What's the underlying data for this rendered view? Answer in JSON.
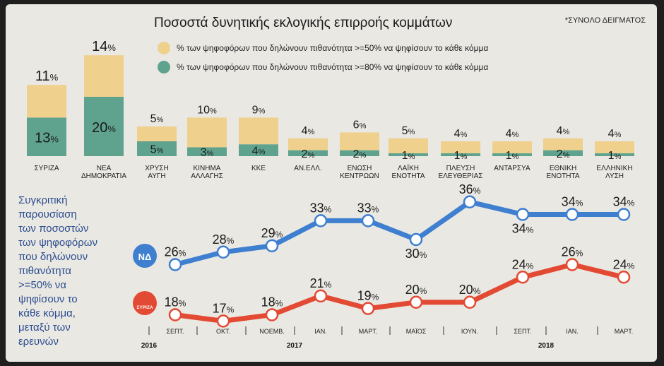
{
  "header": {
    "title": "Ποσοστά δυνητικής εκλογικής επιρροής κομμάτων",
    "note": "*ΣΥΝΟΛΟ ΔΕΙΓΜΑΤΟΣ"
  },
  "colors": {
    "yellow": "#efd08c",
    "green": "#5fa38f",
    "blue": "#3f7fd0",
    "red": "#e34a33",
    "side_text": "#2b4d8f"
  },
  "chart_data": [
    {
      "type": "bar",
      "title": "Ποσοστά δυνητικής εκλογικής επιρροής κομμάτων",
      "categories": [
        [
          "ΣΥΡΙΖΑ"
        ],
        [
          "ΝΕΑ",
          "ΔΗΜΟΚΡΑΤΙΑ"
        ],
        [
          "ΧΡΥΣΗ",
          "ΑΥΓΗ"
        ],
        [
          "ΚΙΝΗΜΑ",
          "ΑΛΛΑΓΗΣ"
        ],
        [
          "ΚΚΕ"
        ],
        [
          "ΑΝ.ΕΛΛ."
        ],
        [
          "ΕΝΩΣΗ",
          "ΚΕΝΤΡΩΩΝ"
        ],
        [
          "ΛΑΪΚΗ",
          "ΕΝΟΤΗΤΑ"
        ],
        [
          "ΠΛΕΥΣΗ",
          "ΕΛΕΥΘΕΡΙΑΣ"
        ],
        [
          "ΑΝΤΑΡΣΥΑ"
        ],
        [
          "ΕΘΝΙΚΗ",
          "ΕΝΟΤΗΤΑ"
        ],
        [
          "ΕΛΛΗΝΙΚΗ",
          "ΛΥΣΗ"
        ]
      ],
      "series": [
        {
          "name": "% των ψηφοφόρων που δηλώνουν πιθανότητα >=50% να ψηφίσουν το κάθε κόμμα",
          "values": [
            11,
            14,
            5,
            10,
            9,
            4,
            6,
            5,
            4,
            4,
            4,
            4
          ]
        },
        {
          "name": "% των ψηφοφόρων που δηλώνουν πιθανότητα >=80% να ψηφίσουν το κάθε κόμμα",
          "values": [
            13,
            20,
            5,
            3,
            4,
            2,
            2,
            1,
            1,
            1,
            2,
            1
          ]
        }
      ],
      "stacked": true,
      "legend": "top"
    },
    {
      "type": "line",
      "title": [
        "Συγκριτική",
        "παρουσίαση",
        "των ποσοστών",
        "των ψηφοφόρων",
        "που δηλώνουν",
        "πιθανότητα",
        ">=50% να",
        "ψηφίσουν το",
        "κάθε κόμμα,",
        "μεταξύ των",
        "ερευνών"
      ],
      "x": [
        "ΣΕΠΤ.",
        "ΟΚΤ.",
        "ΝΟΕΜΒ.",
        "ΙΑΝ.",
        "ΜΑΡΤ.",
        "ΜΑΪΟΣ",
        "ΙΟΥΝ.",
        "ΣΕΠΤ.",
        "ΙΑΝ.",
        "ΜΑΡΤ."
      ],
      "years": [
        {
          "label": "2016",
          "index": 0
        },
        {
          "label": "2017",
          "index": 3
        },
        {
          "label": "2018",
          "index": 8
        }
      ],
      "series": [
        {
          "name": "ΝΔ",
          "values": [
            26,
            28,
            29,
            33,
            33,
            30,
            36,
            34,
            34,
            34
          ]
        },
        {
          "name": "ΣΥΡΙΖΑ",
          "values": [
            18,
            17,
            18,
            21,
            19,
            20,
            20,
            24,
            26,
            24
          ]
        }
      ],
      "ylim": [
        14,
        38
      ]
    }
  ]
}
